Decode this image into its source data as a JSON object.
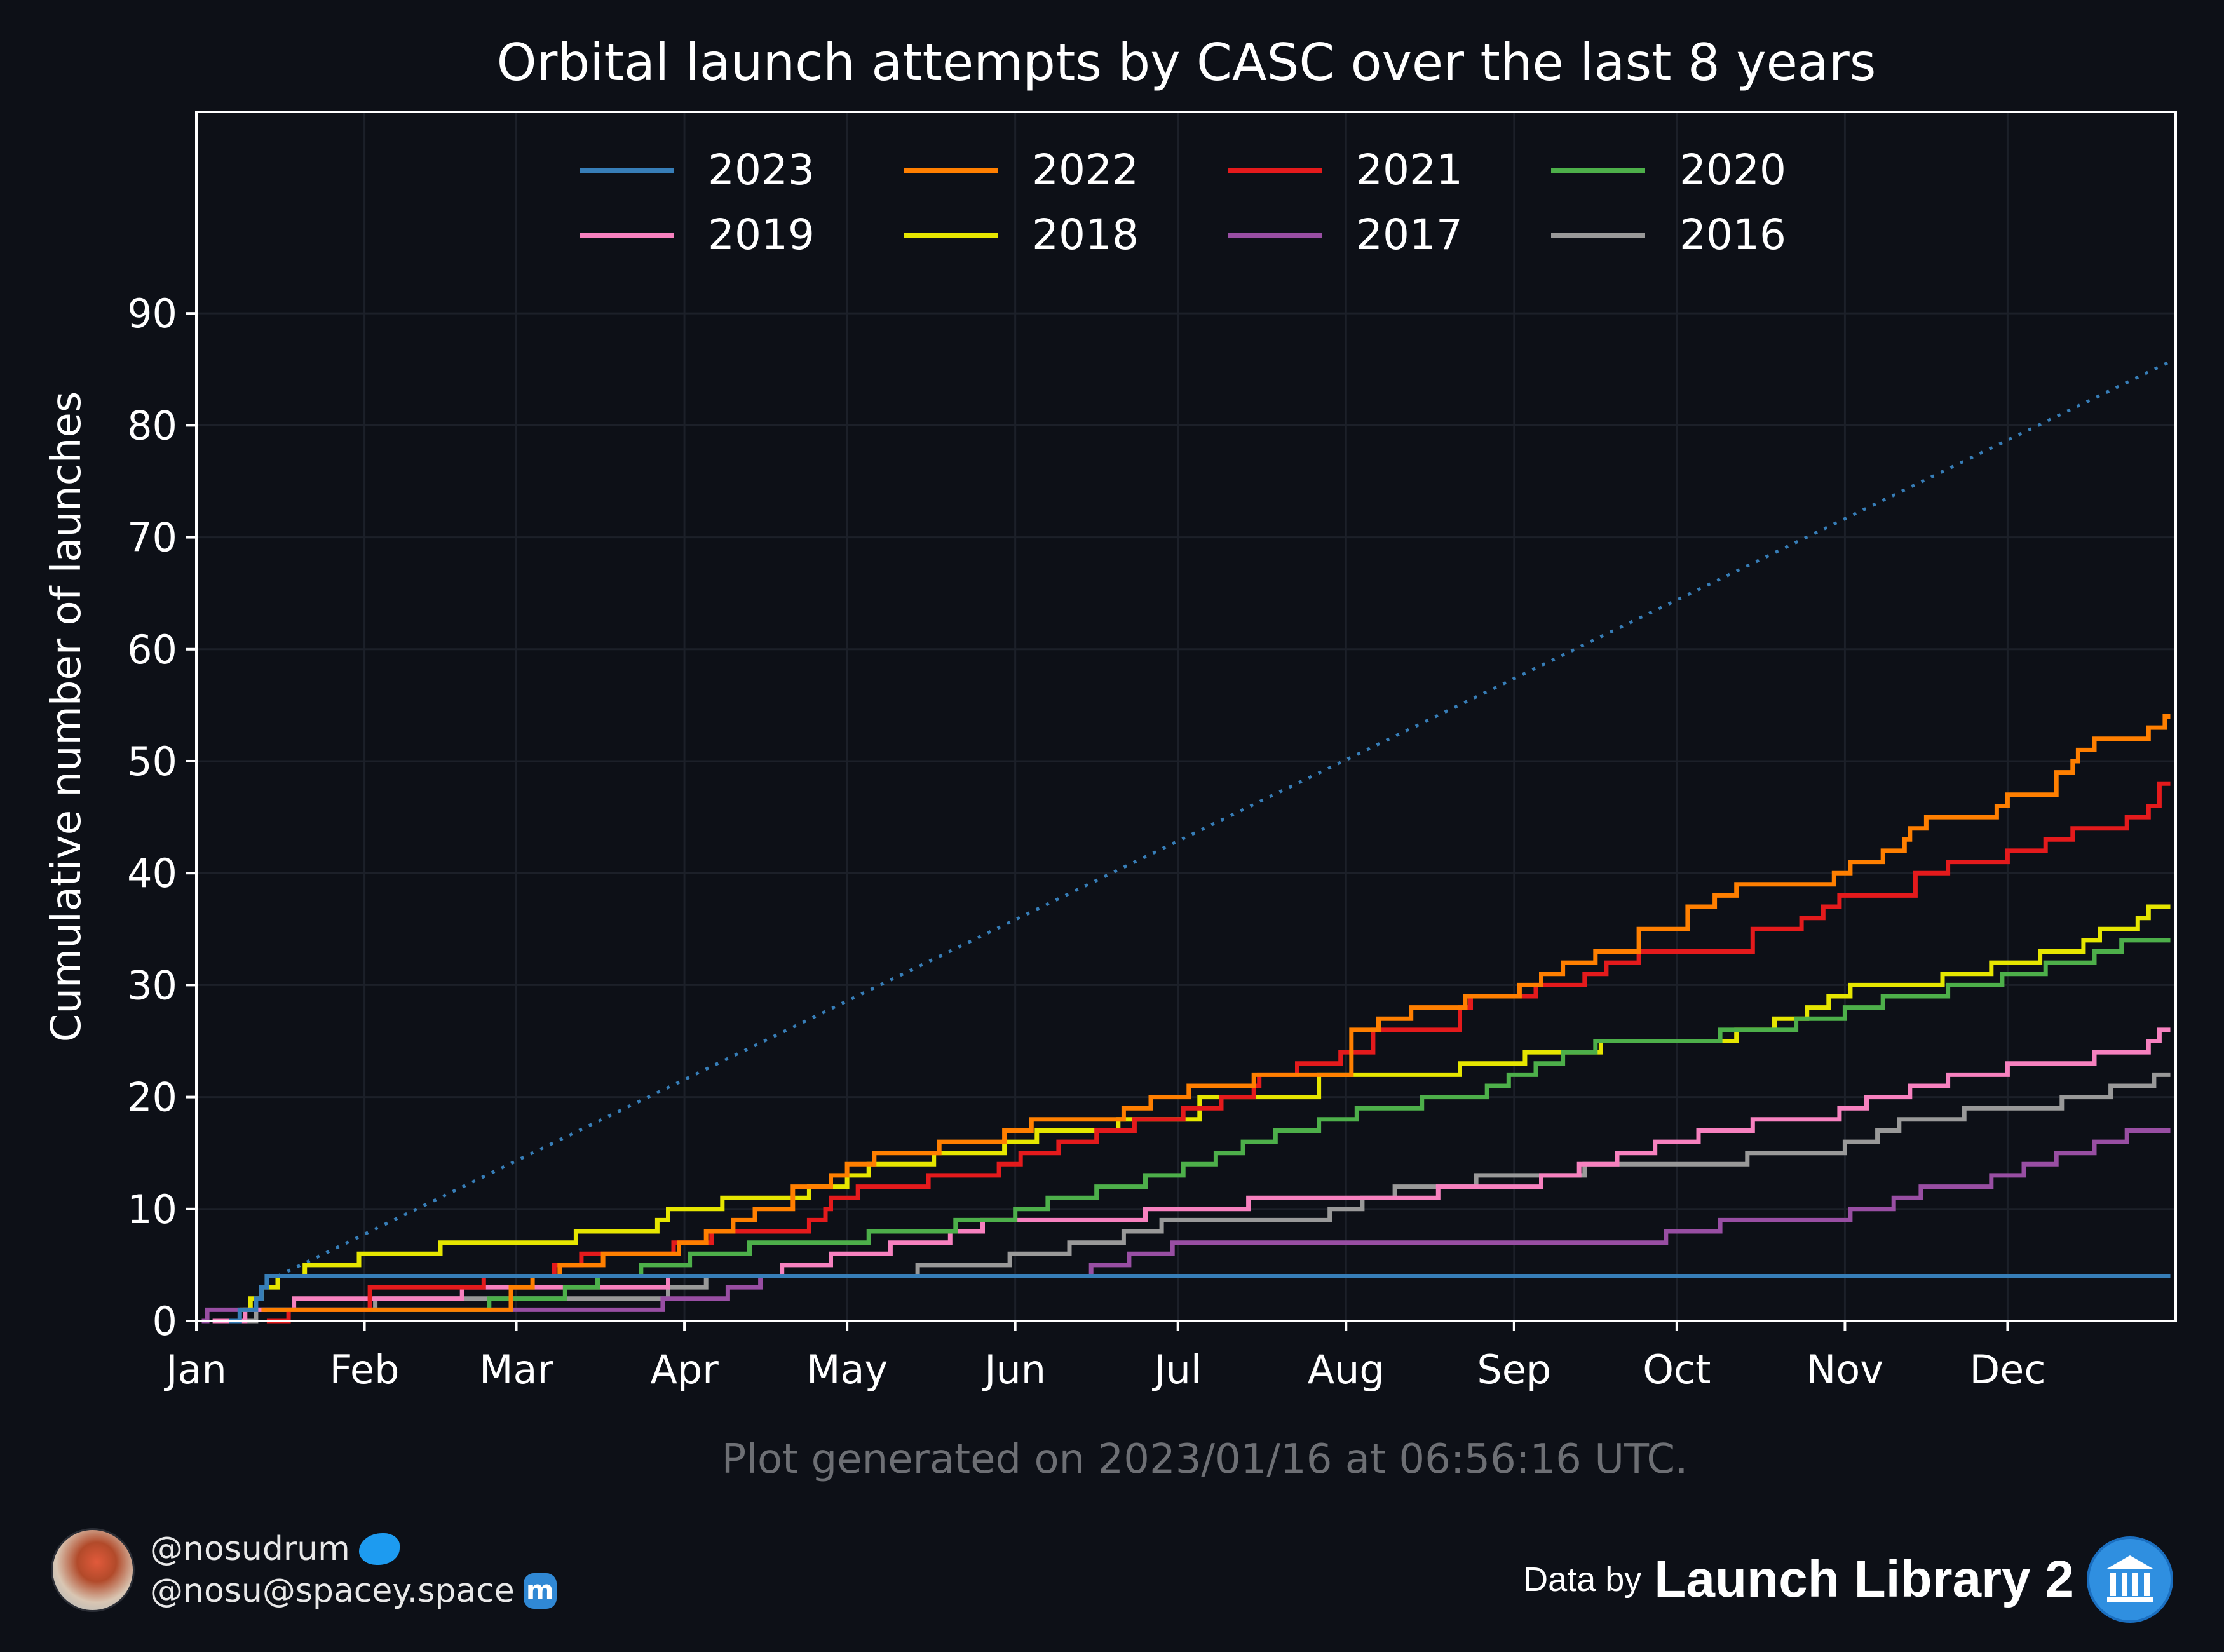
{
  "chart_data": {
    "type": "line",
    "title": "Orbital launch attempts by CASC over the last 8 years",
    "xlabel": "",
    "ylabel": "Cumulative number of launches",
    "xlim": [
      "Jan 1",
      "Dec 31"
    ],
    "ylim": [
      0,
      108
    ],
    "x_ticks": [
      "Jan",
      "Feb",
      "Mar",
      "Apr",
      "May",
      "Jun",
      "Jul",
      "Aug",
      "Sep",
      "Oct",
      "Nov",
      "Dec"
    ],
    "y_ticks": [
      0,
      10,
      20,
      30,
      40,
      50,
      60,
      70,
      80,
      90
    ],
    "grid": true,
    "legend_position": "top-center",
    "x_unit": "day of year (1 = Jan 1)",
    "series": [
      {
        "name": "2023",
        "color": "#377eb8",
        "style": "step",
        "points": [
          [
            7,
            0
          ],
          [
            9,
            1
          ],
          [
            12,
            2
          ],
          [
            13,
            3
          ],
          [
            14,
            4
          ],
          [
            16,
            4
          ]
        ]
      },
      {
        "name": "2023",
        "legend": false,
        "color": "#377eb8",
        "style": "dotted",
        "note": "linear projection",
        "points": [
          [
            16,
            4
          ],
          [
            365,
            85.7
          ]
        ]
      },
      {
        "name": "2022",
        "color": "#ff7f00",
        "style": "step",
        "points": [
          [
            13,
            1
          ],
          [
            17,
            1
          ],
          [
            59,
            3
          ],
          [
            63,
            4
          ],
          [
            68,
            5
          ],
          [
            76,
            6
          ],
          [
            90,
            7
          ],
          [
            95,
            8
          ],
          [
            100,
            9
          ],
          [
            104,
            10
          ],
          [
            111,
            12
          ],
          [
            118,
            13
          ],
          [
            121,
            14
          ],
          [
            126,
            15
          ],
          [
            138,
            16
          ],
          [
            150,
            17
          ],
          [
            155,
            18
          ],
          [
            172,
            19
          ],
          [
            177,
            20
          ],
          [
            184,
            21
          ],
          [
            196,
            22
          ],
          [
            214,
            26
          ],
          [
            219,
            27
          ],
          [
            225,
            28
          ],
          [
            235,
            29
          ],
          [
            245,
            30
          ],
          [
            249,
            31
          ],
          [
            253,
            32
          ],
          [
            259,
            33
          ],
          [
            267,
            35
          ],
          [
            276,
            37
          ],
          [
            281,
            38
          ],
          [
            285,
            39
          ],
          [
            303,
            40
          ],
          [
            306,
            41
          ],
          [
            312,
            42
          ],
          [
            316,
            43
          ],
          [
            317,
            44
          ],
          [
            320,
            45
          ],
          [
            333,
            46
          ],
          [
            335,
            47
          ],
          [
            344,
            49
          ],
          [
            347,
            50
          ],
          [
            348,
            51
          ],
          [
            351,
            52
          ],
          [
            361,
            53
          ],
          [
            364,
            54
          ]
        ]
      },
      {
        "name": "2021",
        "color": "#e41a1c",
        "style": "step",
        "points": [
          [
            14,
            0
          ],
          [
            18,
            1
          ],
          [
            33,
            3
          ],
          [
            54,
            4
          ],
          [
            67,
            5
          ],
          [
            72,
            6
          ],
          [
            89,
            7
          ],
          [
            96,
            8
          ],
          [
            114,
            9
          ],
          [
            117,
            10
          ],
          [
            118,
            11
          ],
          [
            123,
            12
          ],
          [
            136,
            13
          ],
          [
            149,
            14
          ],
          [
            153,
            15
          ],
          [
            160,
            16
          ],
          [
            167,
            17
          ],
          [
            174,
            18
          ],
          [
            183,
            19
          ],
          [
            190,
            20
          ],
          [
            196,
            21
          ],
          [
            197,
            22
          ],
          [
            204,
            23
          ],
          [
            212,
            24
          ],
          [
            218,
            26
          ],
          [
            234,
            28
          ],
          [
            236,
            29
          ],
          [
            248,
            30
          ],
          [
            257,
            31
          ],
          [
            261,
            32
          ],
          [
            267,
            33
          ],
          [
            288,
            35
          ],
          [
            297,
            36
          ],
          [
            301,
            37
          ],
          [
            304,
            38
          ],
          [
            318,
            40
          ],
          [
            324,
            41
          ],
          [
            335,
            42
          ],
          [
            342,
            43
          ],
          [
            347,
            44
          ],
          [
            357,
            45
          ],
          [
            361,
            46
          ],
          [
            363,
            48
          ]
        ]
      },
      {
        "name": "2020",
        "color": "#4daf4a",
        "style": "step",
        "points": [
          [
            14,
            1
          ],
          [
            33,
            1
          ],
          [
            55,
            2
          ],
          [
            69,
            3
          ],
          [
            75,
            4
          ],
          [
            83,
            5
          ],
          [
            92,
            6
          ],
          [
            103,
            7
          ],
          [
            125,
            8
          ],
          [
            141,
            9
          ],
          [
            152,
            10
          ],
          [
            158,
            11
          ],
          [
            167,
            12
          ],
          [
            176,
            13
          ],
          [
            183,
            14
          ],
          [
            189,
            15
          ],
          [
            194,
            16
          ],
          [
            200,
            17
          ],
          [
            208,
            18
          ],
          [
            215,
            19
          ],
          [
            227,
            20
          ],
          [
            239,
            21
          ],
          [
            243,
            22
          ],
          [
            248,
            23
          ],
          [
            253,
            24
          ],
          [
            259,
            25
          ],
          [
            282,
            26
          ],
          [
            296,
            27
          ],
          [
            305,
            28
          ],
          [
            312,
            29
          ],
          [
            324,
            30
          ],
          [
            334,
            31
          ],
          [
            342,
            32
          ],
          [
            351,
            33
          ],
          [
            356,
            34
          ]
        ]
      },
      {
        "name": "2019",
        "color": "#f781bf",
        "style": "step",
        "points": [
          [
            4,
            0
          ],
          [
            10,
            1
          ],
          [
            19,
            2
          ],
          [
            31,
            2
          ],
          [
            38,
            2
          ],
          [
            50,
            3
          ],
          [
            88,
            4
          ],
          [
            109,
            5
          ],
          [
            118,
            6
          ],
          [
            129,
            7
          ],
          [
            140,
            8
          ],
          [
            146,
            9
          ],
          [
            160,
            9
          ],
          [
            176,
            10
          ],
          [
            195,
            11
          ],
          [
            230,
            12
          ],
          [
            249,
            13
          ],
          [
            256,
            14
          ],
          [
            263,
            15
          ],
          [
            270,
            16
          ],
          [
            278,
            17
          ],
          [
            288,
            18
          ],
          [
            304,
            19
          ],
          [
            309,
            20
          ],
          [
            317,
            21
          ],
          [
            324,
            22
          ],
          [
            335,
            23
          ],
          [
            351,
            24
          ],
          [
            361,
            25
          ],
          [
            363,
            26
          ]
        ]
      },
      {
        "name": "2018",
        "color": "#e6e600",
        "style": "step",
        "points": [
          [
            9,
            1
          ],
          [
            11,
            2
          ],
          [
            13,
            3
          ],
          [
            16,
            4
          ],
          [
            21,
            5
          ],
          [
            31,
            6
          ],
          [
            46,
            7
          ],
          [
            71,
            8
          ],
          [
            86,
            9
          ],
          [
            88,
            10
          ],
          [
            98,
            11
          ],
          [
            114,
            12
          ],
          [
            121,
            13
          ],
          [
            125,
            14
          ],
          [
            137,
            15
          ],
          [
            150,
            16
          ],
          [
            156,
            17
          ],
          [
            171,
            18
          ],
          [
            186,
            20
          ],
          [
            208,
            22
          ],
          [
            234,
            23
          ],
          [
            246,
            24
          ],
          [
            260,
            25
          ],
          [
            285,
            26
          ],
          [
            292,
            27
          ],
          [
            298,
            28
          ],
          [
            302,
            29
          ],
          [
            306,
            30
          ],
          [
            323,
            31
          ],
          [
            332,
            32
          ],
          [
            341,
            33
          ],
          [
            349,
            34
          ],
          [
            352,
            35
          ],
          [
            359,
            36
          ],
          [
            361,
            37
          ]
        ]
      },
      {
        "name": "2017",
        "color": "#984ea3",
        "style": "step",
        "points": [
          [
            2,
            0
          ],
          [
            3,
            1
          ],
          [
            8,
            1
          ],
          [
            53,
            1
          ],
          [
            87,
            2
          ],
          [
            99,
            3
          ],
          [
            105,
            4
          ],
          [
            145,
            4
          ],
          [
            166,
            5
          ],
          [
            173,
            6
          ],
          [
            181,
            7
          ],
          [
            245,
            7
          ],
          [
            272,
            8
          ],
          [
            282,
            9
          ],
          [
            300,
            9
          ],
          [
            306,
            10
          ],
          [
            314,
            11
          ],
          [
            319,
            12
          ],
          [
            332,
            13
          ],
          [
            338,
            14
          ],
          [
            344,
            15
          ],
          [
            351,
            16
          ],
          [
            357,
            17
          ]
        ]
      },
      {
        "name": "2016",
        "color": "#999999",
        "style": "step",
        "points": [
          [
            9,
            0
          ],
          [
            12,
            1
          ],
          [
            21,
            1
          ],
          [
            34,
            2
          ],
          [
            62,
            2
          ],
          [
            88,
            3
          ],
          [
            95,
            4
          ],
          [
            134,
            5
          ],
          [
            151,
            6
          ],
          [
            162,
            7
          ],
          [
            172,
            8
          ],
          [
            179,
            9
          ],
          [
            181,
            9
          ],
          [
            200,
            9
          ],
          [
            210,
            10
          ],
          [
            216,
            11
          ],
          [
            222,
            12
          ],
          [
            237,
            13
          ],
          [
            257,
            14
          ],
          [
            267,
            14
          ],
          [
            287,
            15
          ],
          [
            305,
            16
          ],
          [
            311,
            17
          ],
          [
            315,
            18
          ],
          [
            327,
            19
          ],
          [
            338,
            19
          ],
          [
            345,
            20
          ],
          [
            354,
            21
          ],
          [
            362,
            22
          ]
        ]
      }
    ]
  },
  "legend_entries": [
    "2023",
    "2022",
    "2021",
    "2020",
    "2019",
    "2018",
    "2017",
    "2016"
  ],
  "footer": {
    "generated": "Plot generated on 2023/01/16 at 06:56:16 UTC.",
    "twitter_handle": "@nosudrum",
    "mastodon_handle": "@nosu@spacey.space",
    "data_by_prefix": "Data by",
    "data_source": "Launch Library 2",
    "icons": {
      "twitter": "twitter-bird-icon",
      "mastodon": "mastodon-icon",
      "source": "launch-library-logo-icon",
      "avatar": "avatar"
    }
  }
}
